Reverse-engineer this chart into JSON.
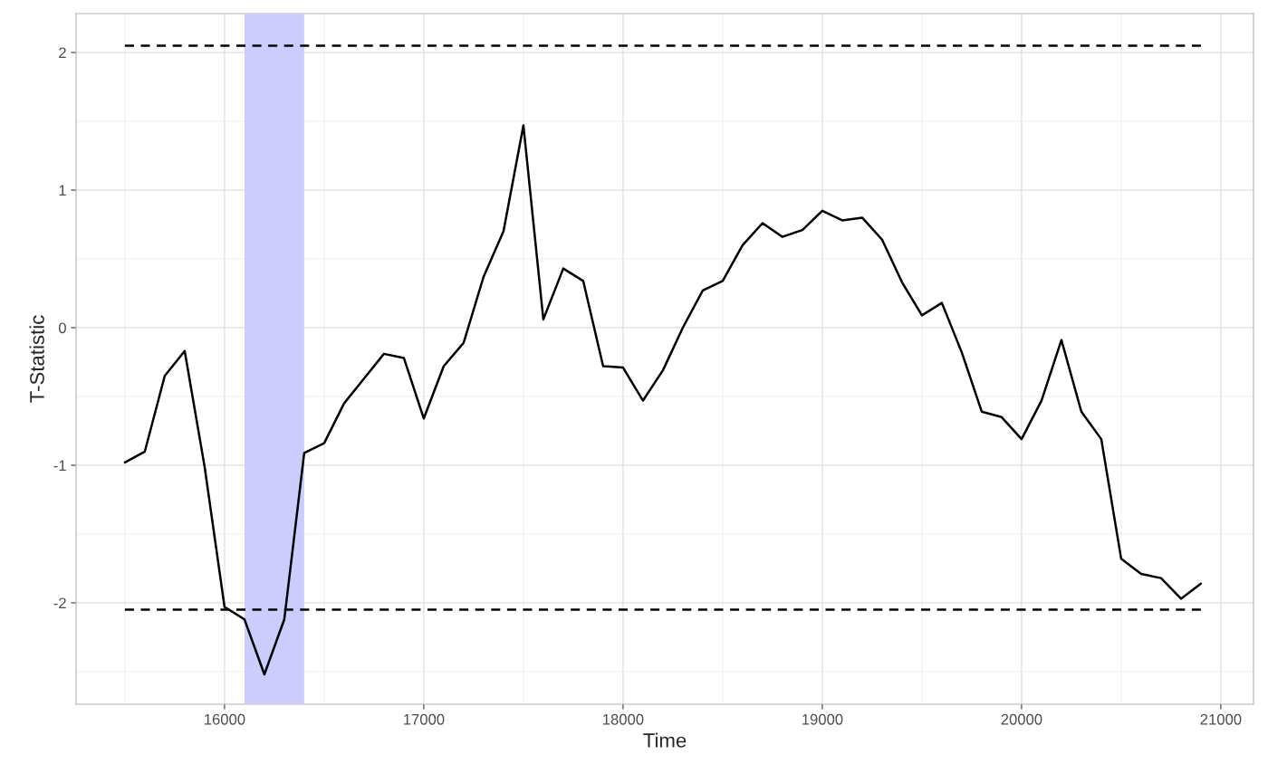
{
  "chart_data": {
    "type": "line",
    "xlabel": "Time",
    "ylabel": "T-Statistic",
    "xlim": [
      15255,
      21164
    ],
    "xticks": [
      16000,
      17000,
      18000,
      19000,
      20000,
      21000
    ],
    "ylim": [
      -2.737,
      2.283
    ],
    "yticks": [
      -2,
      -1,
      0,
      1,
      2
    ],
    "grid": true,
    "series": [
      {
        "color": "#000000",
        "x": [
          15500,
          15600,
          15700,
          15800,
          15900,
          16000,
          16100,
          16200,
          16300,
          16400,
          16500,
          16600,
          16700,
          16800,
          16900,
          17000,
          17100,
          17200,
          17300,
          17400,
          17500,
          17600,
          17700,
          17800,
          17900,
          18000,
          18100,
          18200,
          18300,
          18400,
          18500,
          18600,
          18700,
          18800,
          18900,
          19000,
          19100,
          19200,
          19300,
          19400,
          19500,
          19600,
          19700,
          19800,
          19900,
          20000,
          20100,
          20200,
          20300,
          20400,
          20500,
          20600,
          20700,
          20800,
          20900
        ],
        "values": [
          -0.98,
          -0.9,
          -0.35,
          -0.17,
          -1.01,
          -2.03,
          -2.12,
          -2.52,
          -2.12,
          -0.91,
          -0.84,
          -0.55,
          -0.37,
          -0.19,
          -0.22,
          -0.66,
          -0.28,
          -0.11,
          0.37,
          0.7,
          1.47,
          0.06,
          0.43,
          0.34,
          -0.28,
          -0.29,
          -0.53,
          -0.31,
          0.0,
          0.27,
          0.34,
          0.6,
          0.76,
          0.66,
          0.71,
          0.85,
          0.78,
          0.8,
          0.64,
          0.33,
          0.09,
          0.18,
          -0.18,
          -0.61,
          -0.65,
          -0.81,
          -0.53,
          -0.09,
          -0.61,
          -0.81,
          -1.68,
          -1.79,
          -1.82,
          -1.97,
          -1.86
        ]
      },
      {
        "color": "#000000",
        "line_style": "dashed",
        "x": [
          15500,
          20900
        ],
        "values": [
          2.05,
          2.05
        ]
      },
      {
        "color": "#000000",
        "line_style": "dashed",
        "x": [
          15500,
          20900
        ],
        "values": [
          -2.05,
          -2.05
        ]
      }
    ],
    "bands": [
      {
        "axis": "x",
        "from": 16100,
        "to": 16400,
        "color": "#ccccff"
      }
    ]
  }
}
